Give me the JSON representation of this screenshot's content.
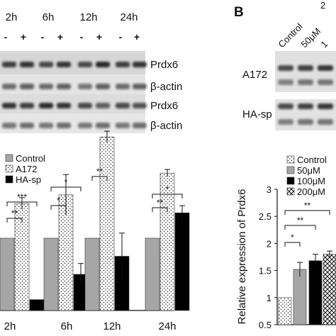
{
  "panel_b_letter": "B",
  "panel_a_blots": {
    "time_points": [
      "2h",
      "6h",
      "12h",
      "24h"
    ],
    "treatment_signs": [
      "-",
      "+"
    ],
    "row_labels": [
      "Prdx6",
      "β-actin",
      "Prdx6",
      "β-actin"
    ]
  },
  "panel_b_blots": {
    "lane_labels": [
      "Control",
      "50μM",
      "1"
    ],
    "cropped_top_char": "2",
    "row_labels": [
      "A172",
      "HA-sp"
    ]
  },
  "chart_data": [
    {
      "type": "bar",
      "categories": [
        "2h",
        "6h",
        "12h",
        "24h"
      ],
      "series": [
        {
          "name": "Control",
          "pattern": "gray",
          "values": [
            1.0,
            1.0,
            1.0,
            1.0
          ],
          "errors": [
            0,
            0,
            0,
            0
          ]
        },
        {
          "name": "A172",
          "pattern": "dotted",
          "values": [
            1.48,
            1.6,
            2.4,
            1.9
          ],
          "errors": [
            0.08,
            0.28,
            0.08,
            0.05
          ]
        },
        {
          "name": "HA-sp",
          "pattern": "black",
          "values": [
            0.15,
            0.5,
            0.75,
            1.35
          ],
          "errors": [
            0,
            0.15,
            0.32,
            0.1
          ]
        }
      ],
      "significance": [
        {
          "label": "***",
          "category": "2h",
          "pair": [
            "Control",
            "HA-sp"
          ]
        },
        {
          "label": "**",
          "category": "2h",
          "pair": [
            "Control",
            "A172"
          ]
        },
        {
          "label": "*",
          "category": "6h",
          "pair": [
            "Control",
            "HA-sp"
          ]
        },
        {
          "label": "*",
          "category": "6h",
          "pair": [
            "Control",
            "A172"
          ]
        },
        {
          "label": "**",
          "category": "12h",
          "pair": [
            "Control",
            "A172"
          ]
        },
        {
          "label": "*",
          "category": "24h",
          "pair": [
            "Control",
            "HA-sp"
          ]
        },
        {
          "label": "**",
          "category": "24h",
          "pair": [
            "Control",
            "A172"
          ]
        }
      ],
      "legend_position": "top-left",
      "grid": false
    },
    {
      "type": "bar",
      "categories": [
        "Control",
        "50μM",
        "100μM",
        "200μM"
      ],
      "values": [
        1.0,
        1.52,
        1.68,
        1.8
      ],
      "errors": [
        0,
        0.13,
        0.12,
        0.06
      ],
      "patterns": [
        "dotted",
        "gray",
        "black",
        "crosshatch"
      ],
      "ylabel": "Relative expression of Prdx6",
      "ylim": [
        0.5,
        3
      ],
      "yticks": [
        0.5,
        1,
        1.5,
        2,
        2.5,
        3
      ],
      "significance": [
        {
          "label": "*",
          "pair": [
            "Control",
            "50μM"
          ]
        },
        {
          "label": "**",
          "pair": [
            "Control",
            "100μM"
          ]
        },
        {
          "label": "**",
          "pair": [
            "Control",
            "200μM"
          ]
        }
      ],
      "legend_position": "top-left",
      "grid": false
    }
  ]
}
